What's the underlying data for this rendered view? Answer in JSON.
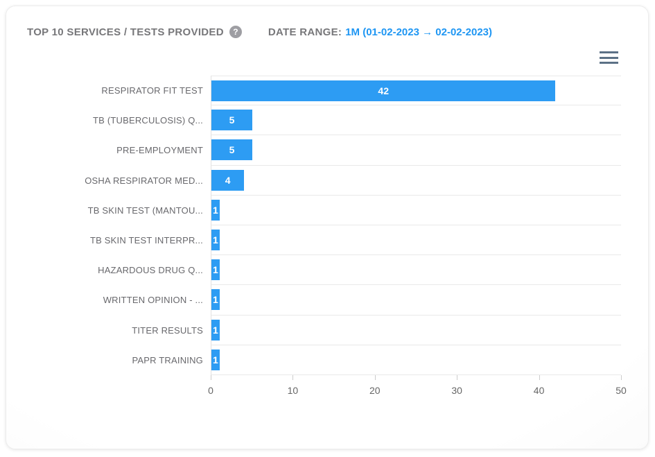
{
  "header": {
    "title": "TOP 10 SERVICES / TESTS PROVIDED",
    "help_icon_glyph": "?",
    "date_range_label": "DATE RANGE:",
    "date_range_value": "1M (01-02-2023 → 02-02-2023)"
  },
  "menu": {
    "icon": "hamburger-icon"
  },
  "colors": {
    "bar": "#2D9CF3",
    "accent_text": "#1E96F3",
    "header_text": "#77777A",
    "category_text": "#68686C",
    "axis_text": "#666666",
    "gridline": "#E9E9E9",
    "menu_icon": "#5C7186",
    "help_icon_bg": "#9E9EA3"
  },
  "chart_data": {
    "type": "bar",
    "orientation": "horizontal",
    "title": "TOP 10 SERVICES / TESTS PROVIDED",
    "categories": [
      "RESPIRATOR FIT TEST",
      "TB (TUBERCULOSIS) Q...",
      "PRE-EMPLOYMENT",
      "OSHA RESPIRATOR MED...",
      "TB SKIN TEST (MANTOU...",
      "TB SKIN TEST INTERPR...",
      "HAZARDOUS DRUG Q...",
      "WRITTEN OPINION - ...",
      "TITER RESULTS",
      "PAPR TRAINING"
    ],
    "values": [
      42,
      5,
      5,
      4,
      1,
      1,
      1,
      1,
      1,
      1
    ],
    "xlabel": "",
    "ylabel": "",
    "xlim": [
      0,
      50
    ],
    "x_ticks": [
      0,
      10,
      20,
      30,
      40,
      50
    ],
    "grid": true,
    "data_labels": true,
    "legend": "none"
  }
}
